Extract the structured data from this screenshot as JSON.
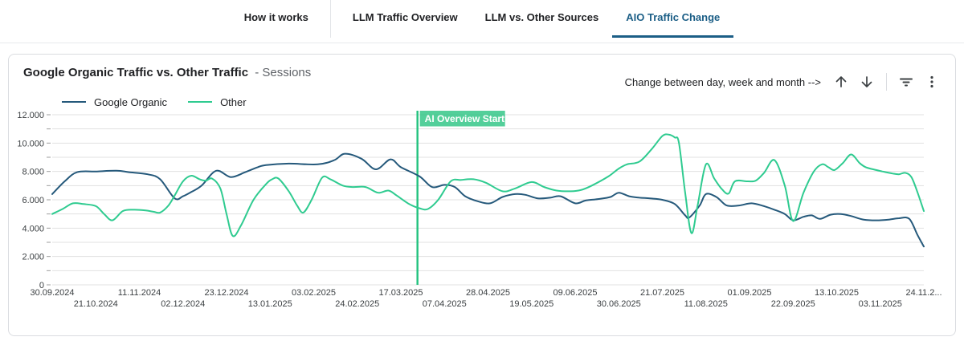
{
  "tabs": {
    "items": [
      {
        "label": "How it works",
        "active": false
      },
      {
        "label": "LLM Traffic Overview",
        "active": false
      },
      {
        "label": "LLM vs. Other Sources",
        "active": false
      },
      {
        "label": "AIO Traffic Change",
        "active": true
      }
    ],
    "active_color": "#1b5e86"
  },
  "card": {
    "title": "Google Organic Traffic vs. Other Traffic",
    "subtitle": "- Sessions",
    "controls": {
      "hint": "Change between day, week and month -->",
      "icons": [
        "arrow-up-icon",
        "arrow-down-icon",
        "filter-icon",
        "kebab-menu-icon"
      ]
    }
  },
  "legend": [
    {
      "label": "Google Organic",
      "color": "#25597b"
    },
    {
      "label": "Other",
      "color": "#2fcb90"
    }
  ],
  "chart_data": {
    "type": "line",
    "title": "Google Organic Traffic vs. Other Traffic - Sessions",
    "ylabel": "Sessions",
    "ylim": [
      0,
      12000
    ],
    "grid_step": 1000,
    "y_major_step": 2000,
    "y_tick_labels": [
      "0",
      "2.000",
      "4.000",
      "6.000",
      "8.000",
      "10.000",
      "12.000"
    ],
    "x_unit": "days since 30.09.2024",
    "x_max_day": 420,
    "x_tick_days": [
      0,
      21,
      42,
      63,
      84,
      105,
      126,
      147,
      168,
      189,
      210,
      231,
      252,
      273,
      294,
      315,
      336,
      357,
      378,
      399,
      420
    ],
    "x_tick_labels": [
      "30.09.2024",
      "21.10.2024",
      "11.11.2024",
      "02.12.2024",
      "23.12.2024",
      "13.01.2025",
      "03.02.2025",
      "24.02.2025",
      "17.03.2025",
      "07.04.2025",
      "28.04.2025",
      "19.05.2025",
      "09.06.2025",
      "30.06.2025",
      "21.07.2025",
      "11.08.2025",
      "01.09.2025",
      "22.09.2025",
      "13.10.2025",
      "03.11.2025",
      "24.11.2..."
    ],
    "gridline_color": "#e1e1e1",
    "annotation": {
      "label": "AI Overview Start",
      "x_day": 176,
      "color": "#22c27e",
      "text_color": "#ffffff"
    },
    "series": [
      {
        "name": "Google Organic",
        "color": "#25597b",
        "points": [
          [
            0,
            6400
          ],
          [
            6,
            7300
          ],
          [
            12,
            7950
          ],
          [
            21,
            8000
          ],
          [
            31,
            8050
          ],
          [
            37,
            7950
          ],
          [
            46,
            7800
          ],
          [
            52,
            7450
          ],
          [
            59,
            6100
          ],
          [
            63,
            6250
          ],
          [
            67,
            6550
          ],
          [
            72,
            7000
          ],
          [
            79,
            8050
          ],
          [
            86,
            7600
          ],
          [
            93,
            7950
          ],
          [
            99,
            8300
          ],
          [
            103,
            8450
          ],
          [
            114,
            8550
          ],
          [
            128,
            8500
          ],
          [
            136,
            8800
          ],
          [
            141,
            9250
          ],
          [
            149,
            8900
          ],
          [
            156,
            8150
          ],
          [
            163,
            8850
          ],
          [
            168,
            8300
          ],
          [
            177,
            7650
          ],
          [
            183,
            6900
          ],
          [
            189,
            7050
          ],
          [
            194,
            6900
          ],
          [
            199,
            6250
          ],
          [
            205,
            5900
          ],
          [
            211,
            5750
          ],
          [
            217,
            6200
          ],
          [
            223,
            6400
          ],
          [
            228,
            6350
          ],
          [
            234,
            6100
          ],
          [
            240,
            6150
          ],
          [
            245,
            6250
          ],
          [
            252,
            5750
          ],
          [
            257,
            5950
          ],
          [
            263,
            6050
          ],
          [
            269,
            6200
          ],
          [
            273,
            6500
          ],
          [
            278,
            6250
          ],
          [
            283,
            6150
          ],
          [
            288,
            6100
          ],
          [
            294,
            6000
          ],
          [
            300,
            5700
          ],
          [
            305,
            4900
          ],
          [
            307,
            4750
          ],
          [
            312,
            5600
          ],
          [
            315,
            6400
          ],
          [
            320,
            6200
          ],
          [
            325,
            5600
          ],
          [
            331,
            5600
          ],
          [
            337,
            5750
          ],
          [
            343,
            5550
          ],
          [
            348,
            5300
          ],
          [
            353,
            5000
          ],
          [
            357,
            4550
          ],
          [
            362,
            4800
          ],
          [
            366,
            4900
          ],
          [
            370,
            4650
          ],
          [
            375,
            4950
          ],
          [
            380,
            5000
          ],
          [
            385,
            4850
          ],
          [
            391,
            4600
          ],
          [
            397,
            4550
          ],
          [
            403,
            4600
          ],
          [
            408,
            4700
          ],
          [
            413,
            4650
          ],
          [
            417,
            3500
          ],
          [
            420,
            2700
          ]
        ]
      },
      {
        "name": "Other",
        "color": "#2fcb90",
        "points": [
          [
            0,
            5000
          ],
          [
            5,
            5350
          ],
          [
            10,
            5750
          ],
          [
            15,
            5700
          ],
          [
            21,
            5550
          ],
          [
            25,
            5000
          ],
          [
            29,
            4550
          ],
          [
            34,
            5200
          ],
          [
            39,
            5300
          ],
          [
            45,
            5250
          ],
          [
            49,
            5150
          ],
          [
            52,
            5100
          ],
          [
            56,
            5600
          ],
          [
            59,
            6300
          ],
          [
            63,
            7300
          ],
          [
            67,
            7700
          ],
          [
            71,
            7450
          ],
          [
            74,
            7350
          ],
          [
            77,
            7500
          ],
          [
            81,
            6800
          ],
          [
            84,
            5000
          ],
          [
            87,
            3450
          ],
          [
            91,
            4200
          ],
          [
            97,
            6000
          ],
          [
            103,
            7100
          ],
          [
            106,
            7450
          ],
          [
            109,
            7500
          ],
          [
            114,
            6600
          ],
          [
            118,
            5600
          ],
          [
            121,
            5100
          ],
          [
            125,
            6000
          ],
          [
            130,
            7550
          ],
          [
            134,
            7450
          ],
          [
            140,
            7000
          ],
          [
            145,
            6900
          ],
          [
            151,
            6900
          ],
          [
            157,
            6500
          ],
          [
            162,
            6650
          ],
          [
            166,
            6300
          ],
          [
            172,
            5700
          ],
          [
            177,
            5400
          ],
          [
            181,
            5350
          ],
          [
            186,
            6000
          ],
          [
            192,
            7300
          ],
          [
            197,
            7400
          ],
          [
            203,
            7450
          ],
          [
            209,
            7200
          ],
          [
            217,
            6600
          ],
          [
            223,
            6800
          ],
          [
            231,
            7250
          ],
          [
            237,
            6900
          ],
          [
            243,
            6650
          ],
          [
            250,
            6600
          ],
          [
            255,
            6700
          ],
          [
            260,
            7000
          ],
          [
            268,
            7650
          ],
          [
            273,
            8200
          ],
          [
            277,
            8500
          ],
          [
            283,
            8700
          ],
          [
            289,
            9600
          ],
          [
            294,
            10500
          ],
          [
            297,
            10600
          ],
          [
            300,
            10400
          ],
          [
            302,
            10000
          ],
          [
            305,
            6500
          ],
          [
            308,
            3650
          ],
          [
            311,
            5600
          ],
          [
            315,
            8500
          ],
          [
            319,
            7500
          ],
          [
            323,
            6700
          ],
          [
            326,
            6450
          ],
          [
            329,
            7300
          ],
          [
            335,
            7300
          ],
          [
            339,
            7350
          ],
          [
            343,
            7900
          ],
          [
            348,
            8800
          ],
          [
            353,
            7000
          ],
          [
            357,
            4500
          ],
          [
            362,
            6500
          ],
          [
            367,
            8000
          ],
          [
            371,
            8500
          ],
          [
            374,
            8300
          ],
          [
            377,
            8100
          ],
          [
            381,
            8600
          ],
          [
            385,
            9200
          ],
          [
            389,
            8600
          ],
          [
            392,
            8300
          ],
          [
            397,
            8100
          ],
          [
            400,
            8000
          ],
          [
            405,
            7850
          ],
          [
            408,
            7800
          ],
          [
            411,
            7900
          ],
          [
            414,
            7600
          ],
          [
            417,
            6500
          ],
          [
            420,
            5200
          ]
        ]
      }
    ]
  }
}
